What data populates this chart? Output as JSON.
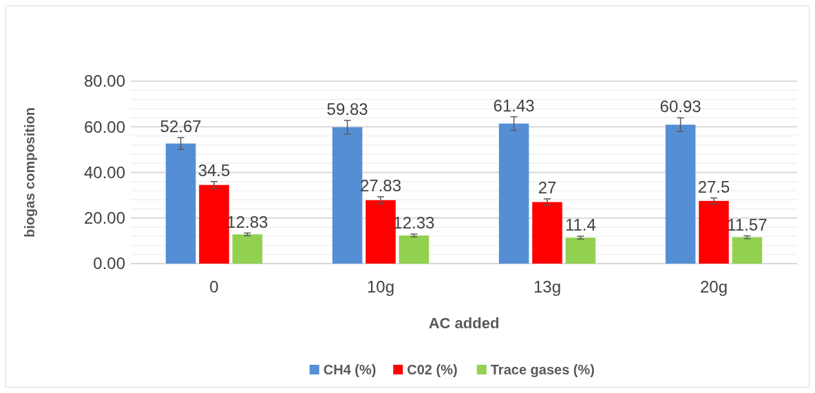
{
  "chart_data": {
    "type": "bar",
    "xlabel": "AC added",
    "ylabel": "biogas composition",
    "categories": [
      "0",
      "10g",
      "13g",
      "20g"
    ],
    "series": [
      {
        "name": "CH4 (%)",
        "color": "#558ed5",
        "values": [
          52.67,
          59.83,
          61.43,
          60.93
        ],
        "errors": [
          2.6,
          3,
          3,
          3
        ]
      },
      {
        "name": "C02 (%)",
        "color": "#ff0000",
        "values": [
          34.5,
          27.83,
          27,
          27.5
        ],
        "errors": [
          1.5,
          1.5,
          1.4,
          1.3
        ]
      },
      {
        "name": "Trace gases (%)",
        "color": "#92d050",
        "values": [
          12.83,
          12.33,
          11.4,
          11.57
        ],
        "errors": [
          0.6,
          0.6,
          0.6,
          0.6
        ]
      }
    ],
    "ylim": [
      0,
      80
    ],
    "yticks": [
      {
        "value": 0,
        "label": "0.00"
      },
      {
        "value": 4,
        "label": null
      },
      {
        "value": 8,
        "label": null
      },
      {
        "value": 12,
        "label": null
      },
      {
        "value": 16,
        "label": null
      },
      {
        "value": 20,
        "label": "20.00"
      },
      {
        "value": 24,
        "label": null
      },
      {
        "value": 28,
        "label": null
      },
      {
        "value": 32,
        "label": null
      },
      {
        "value": 36,
        "label": null
      },
      {
        "value": 40,
        "label": "40.00"
      },
      {
        "value": 44,
        "label": null
      },
      {
        "value": 48,
        "label": null
      },
      {
        "value": 52,
        "label": null
      },
      {
        "value": 56,
        "label": null
      },
      {
        "value": 60,
        "label": "60.00"
      },
      {
        "value": 64,
        "label": null
      },
      {
        "value": 68,
        "label": null
      },
      {
        "value": 72,
        "label": null
      },
      {
        "value": 76,
        "label": null
      },
      {
        "value": 80,
        "label": "80.00"
      }
    ],
    "grid": true,
    "data_labels": true,
    "legend": "bottom"
  }
}
